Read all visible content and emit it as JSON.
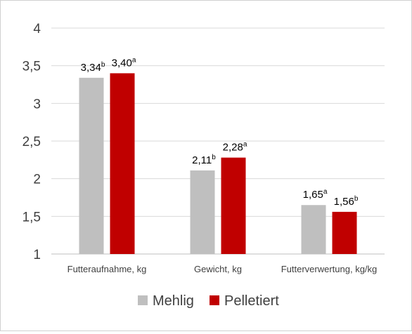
{
  "colors": {
    "series_1": "#bfbfbf",
    "series_2": "#c00000",
    "grid": "#d9d9d9",
    "axis": "#bfbfbf"
  },
  "chart_data": {
    "type": "bar",
    "categories": [
      "Futteraufnahme, kg",
      "Gewicht, kg",
      "Futterverwertung, kg/kg"
    ],
    "series": [
      {
        "name": "Mehlig",
        "values": [
          3.34,
          2.11,
          1.65
        ],
        "labels": [
          "3,34",
          "2,11",
          "1,65"
        ],
        "superscripts": [
          "b",
          "b",
          "a"
        ]
      },
      {
        "name": "Pelletiert",
        "values": [
          3.4,
          2.28,
          1.56
        ],
        "labels": [
          "3,40",
          "2,28",
          "1,56"
        ],
        "superscripts": [
          "a",
          "a",
          "b"
        ]
      }
    ],
    "ylim": [
      1,
      4
    ],
    "yticks": [
      1,
      1.5,
      2,
      2.5,
      3,
      3.5,
      4
    ],
    "ytick_labels": [
      "1",
      "1,5",
      "2",
      "2,5",
      "3",
      "3,5",
      "4"
    ],
    "title": "",
    "xlabel": "",
    "ylabel": "",
    "grid": true,
    "legend_position": "bottom"
  }
}
